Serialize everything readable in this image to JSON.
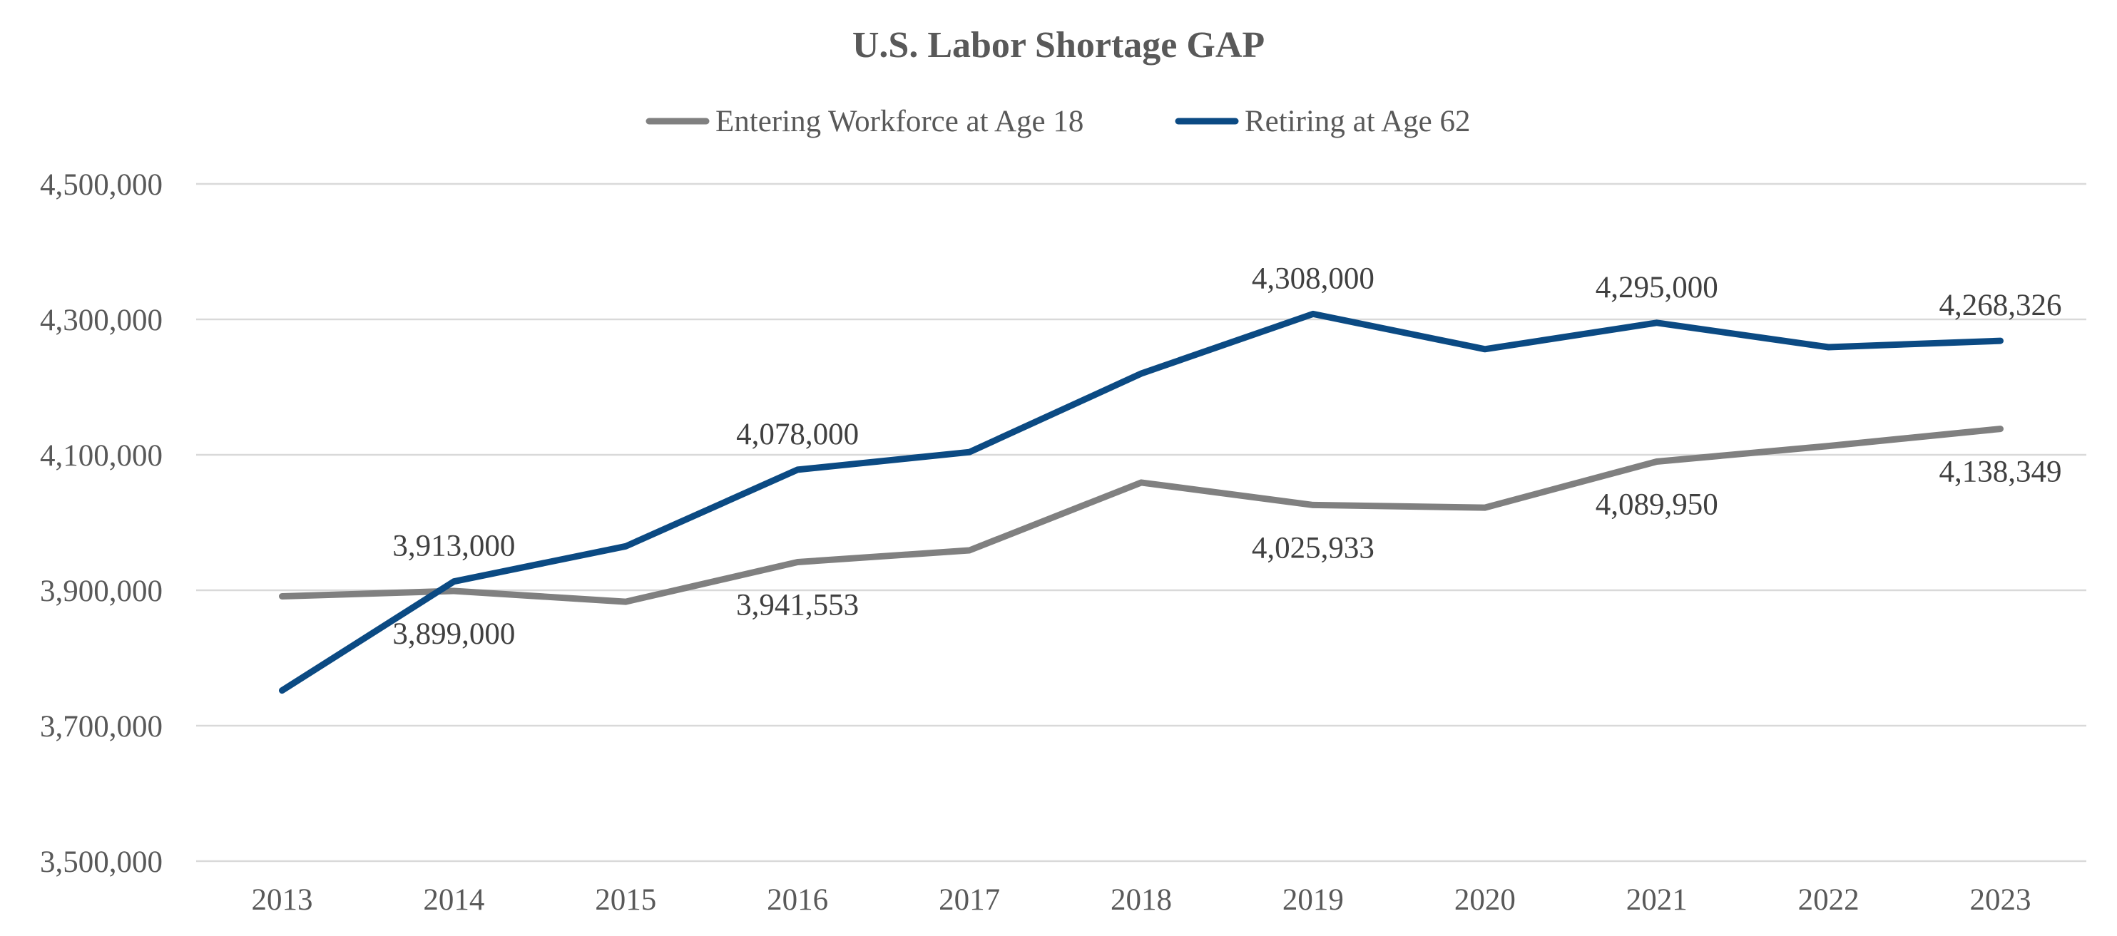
{
  "chart_data": {
    "type": "line",
    "title": "U.S. Labor Shortage GAP",
    "xlabel": "",
    "ylabel": "",
    "categories": [
      "2013",
      "2014",
      "2015",
      "2016",
      "2017",
      "2018",
      "2019",
      "2020",
      "2021",
      "2022",
      "2023"
    ],
    "ylim": [
      3500000,
      4500000
    ],
    "yticks": [
      3500000,
      3700000,
      3900000,
      4100000,
      4300000,
      4500000
    ],
    "ytick_labels": [
      "3,500,000",
      "3,700,000",
      "3,900,000",
      "4,100,000",
      "4,300,000",
      "4,500,000"
    ],
    "grid": true,
    "legend": "top-center",
    "series": [
      {
        "name": "Entering Workforce at Age 18",
        "color": "#808080",
        "values": [
          3891000,
          3899000,
          3883000,
          3941553,
          3959000,
          4059000,
          4025933,
          4022000,
          4089950,
          4113000,
          4138349
        ],
        "labels": [
          {
            "index": 1,
            "text": "3,899,000",
            "position": "below"
          },
          {
            "index": 3,
            "text": "3,941,553",
            "position": "below"
          },
          {
            "index": 6,
            "text": "4,025,933",
            "position": "below"
          },
          {
            "index": 8,
            "text": "4,089,950",
            "position": "below"
          },
          {
            "index": 10,
            "text": "4,138,349",
            "position": "below"
          }
        ]
      },
      {
        "name": "Retiring at Age 62",
        "color": "#0B4A83",
        "values": [
          3752000,
          3913000,
          3965000,
          4078000,
          4104000,
          4220000,
          4308000,
          4256000,
          4295000,
          4259000,
          4268326
        ],
        "labels": [
          {
            "index": 1,
            "text": "3,913,000",
            "position": "above"
          },
          {
            "index": 3,
            "text": "4,078,000",
            "position": "above"
          },
          {
            "index": 6,
            "text": "4,308,000",
            "position": "above"
          },
          {
            "index": 8,
            "text": "4,295,000",
            "position": "above"
          },
          {
            "index": 10,
            "text": "4,268,326",
            "position": "above"
          }
        ]
      }
    ]
  }
}
